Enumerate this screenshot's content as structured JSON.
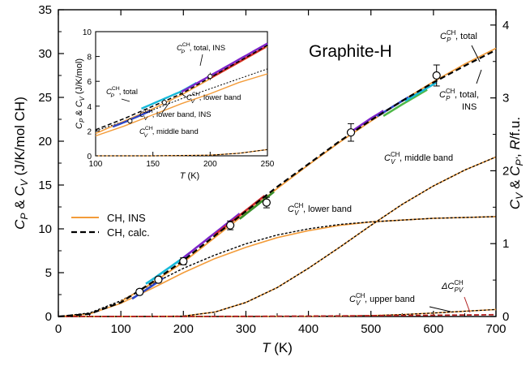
{
  "chart_data": [
    {
      "type": "line",
      "title": "Graphite-H",
      "xlabel": "T (K)",
      "ylabel": "C_P & C_V (J/K/mol CH)",
      "ylabel_right": "C_V & C_P', R/f.u.",
      "xlim": [
        0,
        700
      ],
      "ylim": [
        0,
        35
      ],
      "ylim_right": [
        0,
        4.21
      ],
      "x_ticks": [
        "0",
        "100",
        "200",
        "300",
        "400",
        "500",
        "600",
        "700"
      ],
      "y_ticks": [
        "0",
        "5",
        "10",
        "15",
        "20",
        "25",
        "30",
        "35"
      ],
      "y_right_ticks": [
        "0",
        "1",
        "2",
        "3",
        "4"
      ],
      "legend": {
        "position": "middle-left",
        "entries": [
          {
            "label": "CH, INS",
            "color": "#f39c3a",
            "style": "solid"
          },
          {
            "label": "CH, calc.",
            "color": "#000000",
            "style": "dashed"
          }
        ]
      },
      "series": [
        {
          "name": "CH, calc. C_P total",
          "x": [
            0,
            50,
            100,
            150,
            200,
            250,
            300,
            350,
            400,
            450,
            500,
            550,
            600,
            650,
            700
          ],
          "y": [
            0,
            0.3,
            1.6,
            3.9,
            6.4,
            9.2,
            12.0,
            14.8,
            17.4,
            20.0,
            22.4,
            24.6,
            26.7,
            28.6,
            30.4
          ]
        },
        {
          "name": "CH, INS total",
          "x": [
            100,
            150,
            200,
            250,
            300,
            350,
            400,
            450,
            500,
            550,
            600,
            650,
            700
          ],
          "y": [
            1.7,
            3.8,
            6.2,
            9.0,
            11.8,
            14.6,
            17.3,
            19.9,
            22.3,
            24.6,
            26.8,
            28.8,
            30.6
          ]
        },
        {
          "name": "C_V lower band calc.",
          "x": [
            0,
            50,
            100,
            150,
            200,
            250,
            300,
            350,
            400,
            450,
            500,
            550,
            600,
            650,
            700
          ],
          "y": [
            0,
            0.4,
            1.8,
            3.7,
            5.5,
            7.0,
            8.3,
            9.3,
            10.0,
            10.5,
            10.8,
            11.0,
            11.2,
            11.3,
            11.4
          ]
        },
        {
          "name": "C_V lower band INS",
          "x": [
            0,
            50,
            100,
            150,
            200,
            250,
            300,
            350,
            400,
            450,
            500,
            550,
            600,
            650,
            700
          ],
          "y": [
            0,
            0.3,
            1.5,
            3.2,
            5.0,
            6.6,
            7.9,
            9.0,
            9.8,
            10.4,
            10.8,
            11.0,
            11.2,
            11.3,
            11.4
          ]
        },
        {
          "name": "C_V middle band",
          "x": [
            0,
            100,
            200,
            250,
            300,
            350,
            400,
            450,
            500,
            550,
            600,
            650,
            700
          ],
          "y": [
            0,
            0,
            0.05,
            0.5,
            1.6,
            3.3,
            5.5,
            7.9,
            10.4,
            12.8,
            14.9,
            16.7,
            18.2
          ]
        },
        {
          "name": "C_V upper band",
          "x": [
            0,
            300,
            400,
            450,
            500,
            550,
            600,
            650,
            700
          ],
          "y": [
            0,
            0,
            0.02,
            0.05,
            0.1,
            0.22,
            0.4,
            0.6,
            0.8
          ]
        },
        {
          "name": "ΔC_PV",
          "x": [
            0,
            200,
            300,
            400,
            500,
            600,
            700
          ],
          "y": [
            0,
            0.01,
            0.02,
            0.05,
            0.09,
            0.14,
            0.2
          ]
        },
        {
          "name": "experimental points",
          "x": [
            130,
            160,
            200,
            275,
            333,
            468,
            605
          ],
          "y": [
            2.8,
            4.2,
            6.3,
            10.4,
            13.0,
            21.0,
            27.5
          ],
          "err": [
            0.3,
            0.3,
            0.4,
            0.5,
            0.6,
            1.0,
            1.2
          ]
        }
      ],
      "annotations": {
        "total_right_top": {
          "base": "C",
          "sub": "P",
          "sup": "CH",
          "rest": ", total"
        },
        "total_right_ins": {
          "base": "C",
          "sub": "P",
          "sup": "CH",
          "rest": ", total,",
          "line2": "INS"
        },
        "middle_band": {
          "base": "C",
          "sub": "V",
          "sup": "CH",
          "rest": ", middle band"
        },
        "lower_band": {
          "base": "C",
          "sub": "V",
          "sup": "CH",
          "rest": ", lower band"
        },
        "upper_band": {
          "base": "C",
          "sub": "V",
          "sup": "CH",
          "rest": ", upper band"
        },
        "delta_cpv": {
          "base": "ΔC",
          "sub": "PV",
          "sup": "CH",
          "rest": "",
          "color": "#b22222"
        }
      }
    },
    {
      "type": "line",
      "title": "",
      "xlabel": "T (K)",
      "ylabel": "C_P & C_V (J/K/mol)",
      "xlim": [
        100,
        250
      ],
      "ylim": [
        0,
        10
      ],
      "x_ticks": [
        "100",
        "150",
        "200",
        "250"
      ],
      "y_ticks": [
        "0",
        "2",
        "4",
        "6",
        "8",
        "10"
      ],
      "series": [
        {
          "name": "inset calc. total",
          "x": [
            100,
            125,
            150,
            175,
            200,
            225,
            250
          ],
          "y": [
            2.1,
            3.0,
            4.0,
            5.0,
            6.3,
            7.6,
            8.9
          ]
        },
        {
          "name": "inset INS total",
          "x": [
            100,
            125,
            150,
            175,
            200,
            225,
            250
          ],
          "y": [
            1.8,
            2.8,
            3.8,
            4.9,
            6.2,
            7.5,
            8.8
          ]
        },
        {
          "name": "inset lower band calc.",
          "x": [
            100,
            125,
            150,
            175,
            200,
            225,
            250
          ],
          "y": [
            2.0,
            2.8,
            3.7,
            4.6,
            5.4,
            6.2,
            7.0
          ]
        },
        {
          "name": "inset lower band INS",
          "x": [
            100,
            125,
            150,
            175,
            200,
            225,
            250
          ],
          "y": [
            1.6,
            2.4,
            3.3,
            4.2,
            5.0,
            5.9,
            6.6
          ]
        },
        {
          "name": "inset middle band",
          "x": [
            100,
            150,
            200,
            225,
            250
          ],
          "y": [
            0,
            0,
            0.05,
            0.2,
            0.5
          ]
        },
        {
          "name": "inset points",
          "x": [
            130,
            160,
            200
          ],
          "y": [
            2.8,
            4.3,
            6.4
          ],
          "err": [
            0.2,
            0.25,
            0.3
          ]
        }
      ],
      "annotations": {
        "total_ins": {
          "base": "C",
          "sub": "P",
          "sup": "CH",
          "rest": ", total, INS"
        },
        "total": {
          "base": "C",
          "sub": "P",
          "sup": "CH",
          "rest": ", total"
        },
        "lower_band": {
          "base": "C",
          "sub": "V",
          "sup": "CH",
          "rest": ", lower band"
        },
        "lower_band_ins": {
          "base": "C",
          "sub": "V",
          "sup": "CH",
          "rest": ", lower band, INS"
        },
        "middle_band": {
          "base": "C",
          "sub": "V",
          "sup": "CH",
          "rest": ", middle band"
        }
      }
    }
  ]
}
